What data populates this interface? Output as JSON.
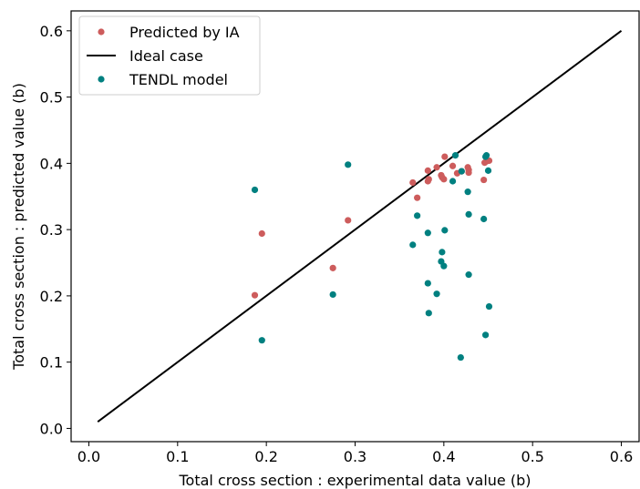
{
  "chart_data": {
    "type": "scatter",
    "xlabel": "Total cross section : experimental data value (b)",
    "ylabel": "Total cross section : predicted value (b)",
    "xlim": [
      -0.02,
      0.62
    ],
    "ylim": [
      -0.02,
      0.63
    ],
    "xticks": [
      0.0,
      0.1,
      0.2,
      0.3,
      0.4,
      0.5,
      0.6
    ],
    "xtick_labels": [
      "0.0",
      "0.1",
      "0.2",
      "0.3",
      "0.4",
      "0.5",
      "0.6"
    ],
    "yticks": [
      0.0,
      0.1,
      0.2,
      0.3,
      0.4,
      0.5,
      0.6
    ],
    "ytick_labels": [
      "0.0",
      "0.1",
      "0.2",
      "0.3",
      "0.4",
      "0.5",
      "0.6"
    ],
    "grid": false,
    "legend_position": "top-left",
    "series": [
      {
        "name": "Predicted by IA",
        "kind": "scatter",
        "color": "#cd5c5c",
        "points": [
          [
            0.187,
            0.201
          ],
          [
            0.195,
            0.294
          ],
          [
            0.275,
            0.242
          ],
          [
            0.292,
            0.314
          ],
          [
            0.365,
            0.371
          ],
          [
            0.37,
            0.348
          ],
          [
            0.382,
            0.389
          ],
          [
            0.382,
            0.373
          ],
          [
            0.383,
            0.376
          ],
          [
            0.392,
            0.394
          ],
          [
            0.397,
            0.382
          ],
          [
            0.398,
            0.379
          ],
          [
            0.4,
            0.376
          ],
          [
            0.401,
            0.41
          ],
          [
            0.41,
            0.396
          ],
          [
            0.415,
            0.385
          ],
          [
            0.42,
            0.388
          ],
          [
            0.427,
            0.394
          ],
          [
            0.428,
            0.39
          ],
          [
            0.428,
            0.386
          ],
          [
            0.445,
            0.375
          ],
          [
            0.446,
            0.401
          ],
          [
            0.448,
            0.403
          ],
          [
            0.451,
            0.404
          ]
        ]
      },
      {
        "name": "Ideal case",
        "kind": "line",
        "color": "#000000",
        "points": [
          [
            0.01,
            0.01
          ],
          [
            0.6,
            0.6
          ]
        ]
      },
      {
        "name": "TENDL model",
        "kind": "scatter",
        "color": "#008080",
        "points": [
          [
            0.187,
            0.36
          ],
          [
            0.195,
            0.133
          ],
          [
            0.275,
            0.202
          ],
          [
            0.292,
            0.398
          ],
          [
            0.365,
            0.277
          ],
          [
            0.37,
            0.321
          ],
          [
            0.382,
            0.295
          ],
          [
            0.382,
            0.219
          ],
          [
            0.383,
            0.174
          ],
          [
            0.392,
            0.203
          ],
          [
            0.397,
            0.252
          ],
          [
            0.398,
            0.266
          ],
          [
            0.4,
            0.245
          ],
          [
            0.401,
            0.299
          ],
          [
            0.41,
            0.373
          ],
          [
            0.413,
            0.412
          ],
          [
            0.419,
            0.107
          ],
          [
            0.42,
            0.388
          ],
          [
            0.427,
            0.357
          ],
          [
            0.428,
            0.323
          ],
          [
            0.428,
            0.232
          ],
          [
            0.445,
            0.316
          ],
          [
            0.447,
            0.141
          ],
          [
            0.447,
            0.41
          ],
          [
            0.448,
            0.412
          ],
          [
            0.45,
            0.389
          ],
          [
            0.451,
            0.184
          ]
        ]
      }
    ]
  }
}
